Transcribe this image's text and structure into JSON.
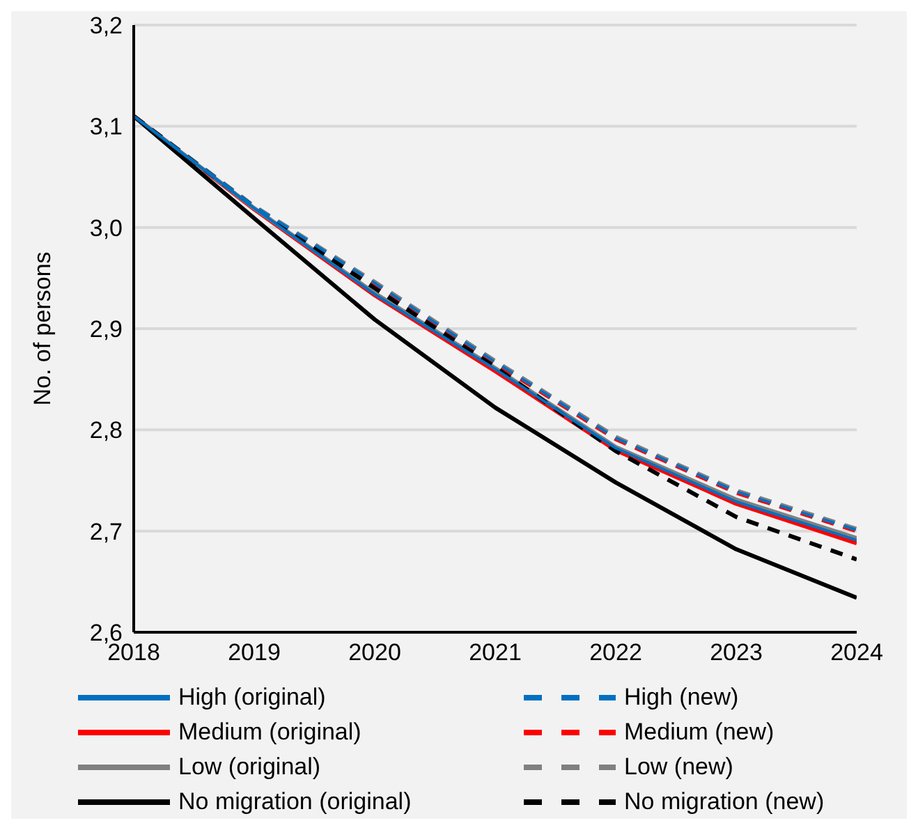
{
  "chart_data": {
    "type": "line",
    "ylabel": "No. of persons",
    "x": [
      2018,
      2019,
      2020,
      2021,
      2022,
      2023,
      2024
    ],
    "xlim": [
      2018,
      2024
    ],
    "xticks": [
      2018,
      2019,
      2020,
      2021,
      2022,
      2023,
      2024
    ],
    "ylim": [
      2.6,
      3.2
    ],
    "yticks": [
      {
        "value": 2.6,
        "label": "2,6"
      },
      {
        "value": 2.7,
        "label": "2,7"
      },
      {
        "value": 2.8,
        "label": "2,8"
      },
      {
        "value": 2.9,
        "label": "2,9"
      },
      {
        "value": 3.0,
        "label": "3,0"
      },
      {
        "value": 3.1,
        "label": "3,1"
      },
      {
        "value": 3.2,
        "label": "3,2"
      }
    ],
    "grid": "y",
    "legend": "bottom",
    "marker": "none",
    "series": [
      {
        "name": "High (original)",
        "color": "#0070c0",
        "line_style": "solid",
        "values": [
          3.11,
          3.019,
          2.934,
          2.86,
          2.782,
          2.729,
          2.691
        ]
      },
      {
        "name": "Medium (original)",
        "color": "#ff0000",
        "line_style": "solid",
        "values": [
          3.11,
          3.018,
          2.933,
          2.858,
          2.78,
          2.727,
          2.688
        ]
      },
      {
        "name": "Low (original)",
        "color": "#808080",
        "line_style": "solid",
        "values": [
          3.11,
          3.019,
          2.935,
          2.861,
          2.783,
          2.731,
          2.693
        ]
      },
      {
        "name": "No migration (original)",
        "color": "#000000",
        "line_style": "solid",
        "values": [
          3.11,
          3.009,
          2.909,
          2.822,
          2.748,
          2.682,
          2.634
        ]
      },
      {
        "name": "High (new)",
        "color": "#0070c0",
        "line_style": "dashed",
        "values": [
          3.11,
          3.021,
          2.945,
          2.867,
          2.792,
          2.739,
          2.701
        ]
      },
      {
        "name": "Medium (new)",
        "color": "#ff0000",
        "line_style": "dashed",
        "values": [
          3.11,
          3.02,
          2.944,
          2.866,
          2.791,
          2.738,
          2.7
        ]
      },
      {
        "name": "Low (new)",
        "color": "#808080",
        "line_style": "dashed",
        "values": [
          3.11,
          3.021,
          2.946,
          2.868,
          2.793,
          2.74,
          2.702
        ]
      },
      {
        "name": "No migration (new)",
        "color": "#000000",
        "line_style": "dashed",
        "values": [
          3.11,
          3.02,
          2.94,
          2.862,
          2.779,
          2.714,
          2.672
        ]
      }
    ]
  }
}
